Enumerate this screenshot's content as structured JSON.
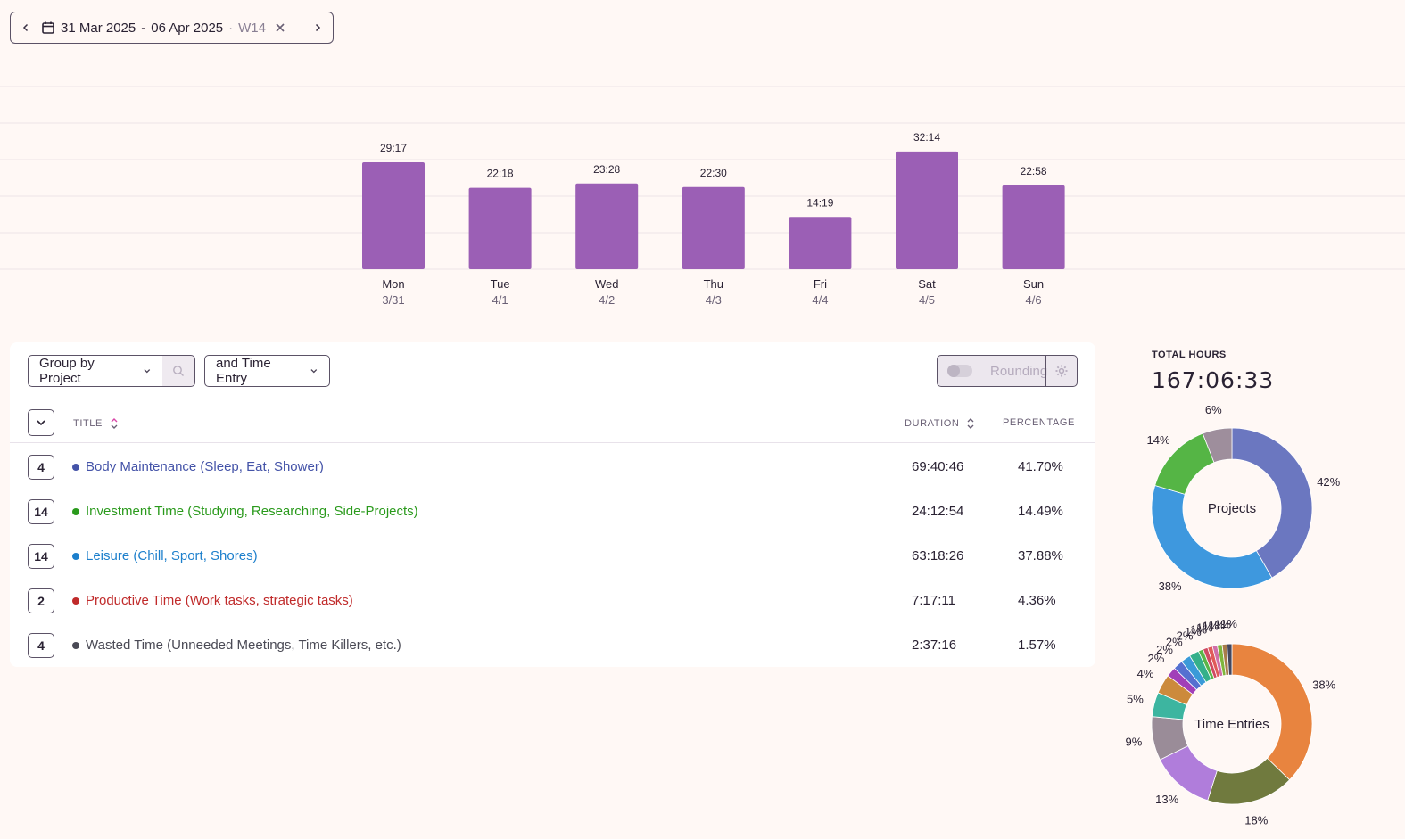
{
  "date_range": {
    "start": "31 Mar 2025",
    "separator": "-",
    "end": "06 Apr 2025",
    "dot": "·",
    "week": "W14"
  },
  "colors": {
    "bar": "#9b5fb5",
    "grid": "#ece5e8"
  },
  "chart_data": [
    {
      "type": "bar",
      "categories": [
        "Mon",
        "Tue",
        "Wed",
        "Thu",
        "Fri",
        "Sat",
        "Sun"
      ],
      "sublabels": [
        "3/31",
        "4/1",
        "4/2",
        "4/3",
        "4/4",
        "4/5",
        "4/6"
      ],
      "labels": [
        "29:17",
        "22:18",
        "23:28",
        "22:30",
        "14:19",
        "32:14",
        "22:58"
      ],
      "values": [
        29.28,
        22.3,
        23.47,
        22.5,
        14.32,
        32.23,
        22.97
      ],
      "ylim": [
        0,
        50
      ],
      "grid": true
    },
    {
      "type": "pie",
      "center_label": "Projects",
      "slices": [
        {
          "value": 41.7,
          "label": "42%",
          "color": "#6b77c0"
        },
        {
          "value": 37.88,
          "label": "38%",
          "color": "#3e98de"
        },
        {
          "value": 14.49,
          "label": "14%",
          "color": "#55b545"
        },
        {
          "value": 5.93,
          "label": "6%",
          "color": "#9e8e9c"
        }
      ]
    },
    {
      "type": "pie",
      "center_label": "Time Entries",
      "slices": [
        {
          "value": 38,
          "label": "38%",
          "color": "#e8843f"
        },
        {
          "value": 18,
          "label": "18%",
          "color": "#707a3e"
        },
        {
          "value": 13,
          "label": "13%",
          "color": "#b07ddb"
        },
        {
          "value": 9,
          "label": "9%",
          "color": "#9a8c98"
        },
        {
          "value": 5,
          "label": "5%",
          "color": "#3db5a0"
        },
        {
          "value": 4,
          "label": "4%",
          "color": "#cc8a3c"
        },
        {
          "value": 2,
          "label": "2%",
          "color": "#a13fb8"
        },
        {
          "value": 2,
          "label": "2%",
          "color": "#5570d0"
        },
        {
          "value": 2,
          "label": "2%",
          "color": "#3a9ad8"
        },
        {
          "value": 2,
          "label": "2%",
          "color": "#35b08a"
        },
        {
          "value": 1,
          "label": "1%",
          "color": "#5ab548"
        },
        {
          "value": 1,
          "label": "1%",
          "color": "#d04a62"
        },
        {
          "value": 1,
          "label": "1%",
          "color": "#e05a5a"
        },
        {
          "value": 1,
          "label": "1%",
          "color": "#d06ea8"
        },
        {
          "value": 1,
          "label": "1%",
          "color": "#7fb53c"
        },
        {
          "value": 1,
          "label": "1%",
          "color": "#a87c4a"
        },
        {
          "value": 1,
          "label": "1%",
          "color": "#44475e"
        }
      ]
    }
  ],
  "toolbar": {
    "group_by": "Group by Project",
    "sub_group": "and Time Entry",
    "rounding": "Rounding"
  },
  "table": {
    "headers": {
      "title": "TITLE",
      "duration": "DURATION",
      "percentage": "PERCENTAGE"
    },
    "rows": [
      {
        "count": "4",
        "title": "Body Maintenance (Sleep, Eat, Shower)",
        "duration": "69:40:46",
        "percentage": "41.70%",
        "color": "#4453a8"
      },
      {
        "count": "14",
        "title": "Investment Time (Studying, Researching, Side-Projects)",
        "duration": "24:12:54",
        "percentage": "14.49%",
        "color": "#2a9a1c"
      },
      {
        "count": "14",
        "title": "Leisure (Chill, Sport, Shores)",
        "duration": "63:18:26",
        "percentage": "37.88%",
        "color": "#1c7fcc"
      },
      {
        "count": "2",
        "title": "Productive Time (Work tasks, strategic tasks)",
        "duration": "7:17:11",
        "percentage": "4.36%",
        "color": "#c02a2a"
      },
      {
        "count": "4",
        "title": "Wasted Time (Unneeded Meetings, Time Killers, etc.)",
        "duration": "2:37:16",
        "percentage": "1.57%",
        "color": "#4a4a55"
      }
    ]
  },
  "summary": {
    "total_label": "TOTAL HOURS",
    "total_value": "167:06:33"
  }
}
